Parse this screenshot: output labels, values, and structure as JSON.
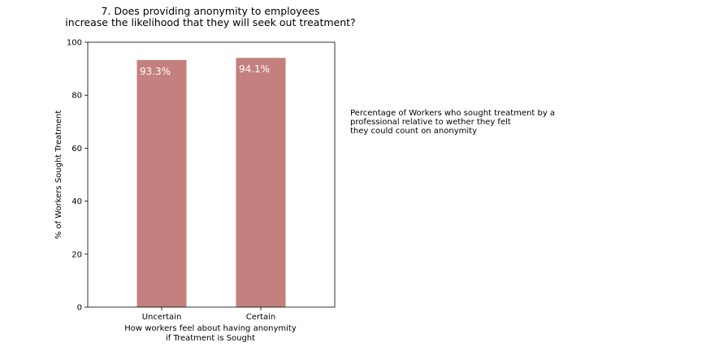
{
  "chart_data": {
    "type": "bar",
    "title": [
      "7. Does providing anonymity to employees",
      "increase the likelihood that they will seek out treatment?"
    ],
    "categories": [
      "Uncertain",
      "Certain"
    ],
    "values": [
      93.3,
      94.1
    ],
    "data_labels": [
      "93.3%",
      "94.1%"
    ],
    "xlabel": [
      "How workers feel about having anonymity",
      "if Treatment is Sought"
    ],
    "ylabel": "% of Workers Sought Treatment",
    "ylim": [
      0,
      100
    ],
    "yticks": [
      0,
      20,
      40,
      60,
      80,
      100
    ],
    "bar_color": "#c4807e",
    "grid": false,
    "legend": "none"
  },
  "annotation": "Percentage of Workers who sought treatment by a\nprofessional relative to wether they felt\nthey could count on anonymity"
}
